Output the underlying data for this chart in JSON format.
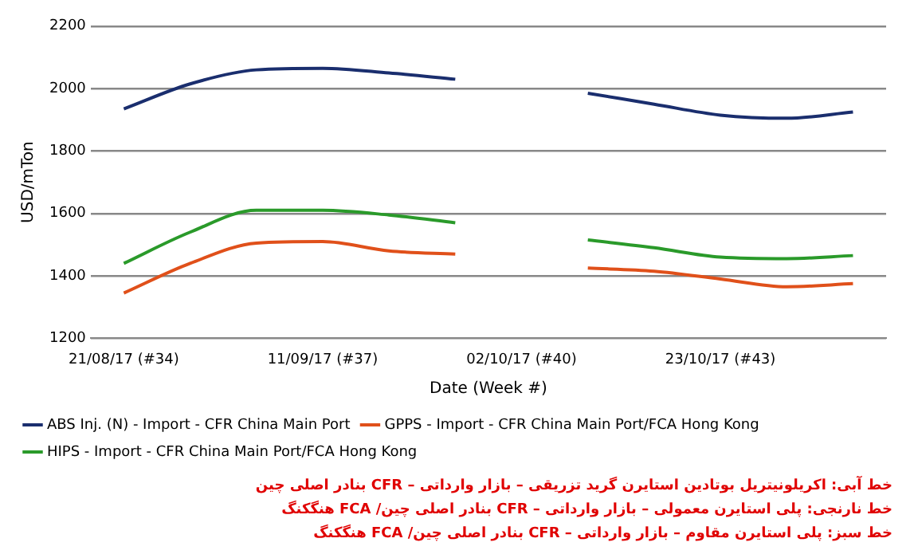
{
  "chart_data": {
    "type": "line",
    "xlabel": "Date (Week #)",
    "ylabel": "USD/mTon",
    "categories": [
      "21/08/17 (#34)",
      null,
      null,
      "11/09/17 (#37)",
      null,
      null,
      "02/10/17 (#40)",
      null,
      null,
      "23/10/17 (#43)",
      null,
      null
    ],
    "series": [
      {
        "name": "ABS Inj. (N) - Import - CFR China Main Port",
        "color": "#1a2e6e",
        "values": [
          1935,
          2015,
          2060,
          2065,
          2050,
          2030,
          null,
          1985,
          1950,
          1915,
          1905,
          1925
        ]
      },
      {
        "name": "GPPS - Import - CFR China Main Port/FCA Hong Kong",
        "color": "#e0501a",
        "values": [
          1345,
          1440,
          1505,
          1510,
          1480,
          1470,
          null,
          1425,
          1415,
          1390,
          1365,
          1375
        ]
      },
      {
        "name": "HIPS - Import - CFR China Main Port/FCA Hong Kong",
        "color": "#2a9a2a",
        "values": [
          1440,
          1540,
          1610,
          1610,
          1595,
          1570,
          null,
          1515,
          1490,
          1460,
          1455,
          1465
        ]
      }
    ],
    "ylim": [
      1200,
      2200
    ],
    "yticks": [
      1200,
      1400,
      1600,
      1800,
      2000,
      2200
    ],
    "grid": "y",
    "legend": "bottom",
    "marker": "none",
    "line_style": "solid",
    "annotations": [
      "خط آبی: اکریلونیتریل بوتادین استایرن گرید تزریقی – بازار وارداتی – CFR بنادر اصلی چین",
      "خط نارنجی: پلی استایرن معمولی – بازار وارداتی – CFR بنادر اصلی چین/ FCA هنگکنگ",
      "خط سبز: پلی استایرن مقاوم – بازار وارداتی – CFR بنادر اصلی چین/ FCA هنگکنگ"
    ]
  }
}
